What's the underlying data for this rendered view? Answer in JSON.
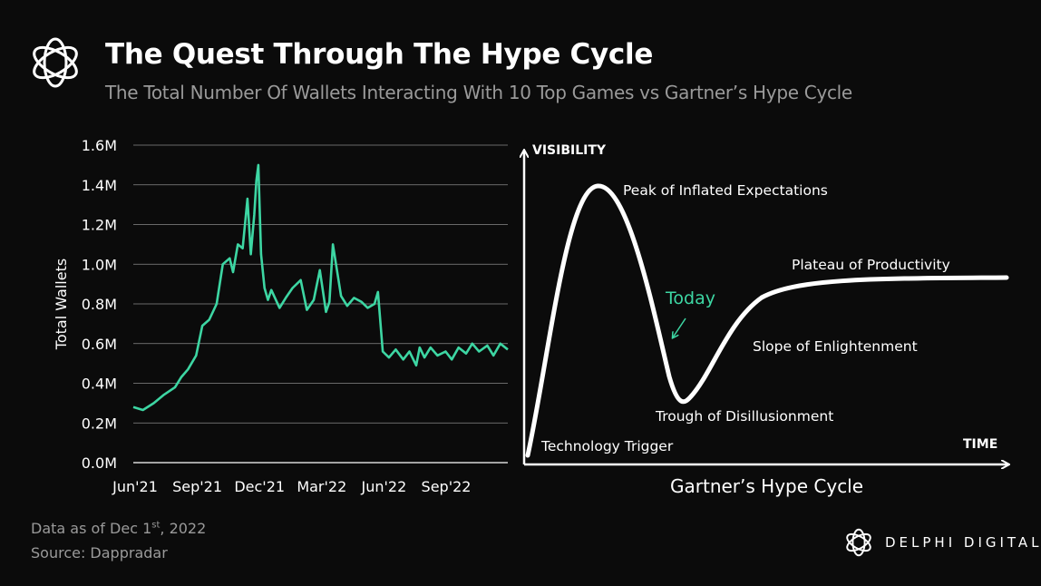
{
  "header": {
    "title": "The Quest Through The Hype Cycle",
    "subtitle": "The Total Number Of Wallets Interacting With 10 Top Games vs Gartner’s Hype Cycle"
  },
  "colors": {
    "accent": "#3dd6a3",
    "background": "#0b0b0b",
    "muted": "#9a9a9a"
  },
  "chart_data": [
    {
      "type": "line",
      "xlabel": "",
      "ylabel": "Total Wallets",
      "ylim": [
        0,
        1600000
      ],
      "yticks": [
        "0.0M",
        "0.2M",
        "0.4M",
        "0.6M",
        "0.8M",
        "1.0M",
        "1.2M",
        "1.4M",
        "1.6M"
      ],
      "xticks": [
        "Jun'21",
        "Sep'21",
        "Dec'21",
        "Mar'22",
        "Jun'22",
        "Sep'22"
      ],
      "grid": true,
      "series": [
        {
          "color": "#3dd6a3",
          "x": [
            "2021-06-01",
            "2021-06-15",
            "2021-07-01",
            "2021-07-15",
            "2021-08-01",
            "2021-08-10",
            "2021-08-20",
            "2021-09-01",
            "2021-09-10",
            "2021-09-20",
            "2021-10-01",
            "2021-10-10",
            "2021-10-20",
            "2021-10-25",
            "2021-11-01",
            "2021-11-08",
            "2021-11-15",
            "2021-11-20",
            "2021-11-25",
            "2021-11-28",
            "2021-12-01",
            "2021-12-05",
            "2021-12-10",
            "2021-12-15",
            "2021-12-20",
            "2022-01-01",
            "2022-01-10",
            "2022-01-20",
            "2022-02-01",
            "2022-02-10",
            "2022-02-20",
            "2022-03-01",
            "2022-03-10",
            "2022-03-15",
            "2022-03-20",
            "2022-04-01",
            "2022-04-10",
            "2022-04-20",
            "2022-05-01",
            "2022-05-10",
            "2022-05-20",
            "2022-05-25",
            "2022-06-01",
            "2022-06-10",
            "2022-06-20",
            "2022-07-01",
            "2022-07-10",
            "2022-07-20",
            "2022-07-25",
            "2022-08-01",
            "2022-08-10",
            "2022-08-20",
            "2022-09-01",
            "2022-09-10",
            "2022-09-20",
            "2022-10-01",
            "2022-10-10",
            "2022-10-20",
            "2022-11-01",
            "2022-11-10",
            "2022-11-20",
            "2022-12-01"
          ],
          "values": [
            280000,
            265000,
            300000,
            340000,
            380000,
            430000,
            470000,
            540000,
            690000,
            720000,
            800000,
            1000000,
            1030000,
            960000,
            1100000,
            1080000,
            1330000,
            1050000,
            1250000,
            1420000,
            1500000,
            1050000,
            880000,
            820000,
            870000,
            780000,
            830000,
            880000,
            920000,
            770000,
            820000,
            970000,
            760000,
            810000,
            1100000,
            840000,
            790000,
            830000,
            810000,
            780000,
            800000,
            860000,
            560000,
            530000,
            570000,
            520000,
            560000,
            490000,
            580000,
            530000,
            580000,
            540000,
            560000,
            520000,
            580000,
            550000,
            600000,
            560000,
            590000,
            540000,
            600000,
            570000
          ]
        }
      ]
    },
    {
      "type": "line",
      "title": "Gartner’s Hype Cycle",
      "xlabel": "TIME",
      "ylabel": "VISIBILITY",
      "annotations": [
        {
          "text": "Peak of Inflated Expectations"
        },
        {
          "text": "Plateau of Productivity"
        },
        {
          "text": "Today",
          "color": "#3dd6a3"
        },
        {
          "text": "Slope of Enlightenment"
        },
        {
          "text": "Trough of Disillusionment"
        },
        {
          "text": "Technology Trigger"
        }
      ]
    }
  ],
  "footer": {
    "data_as_of": "Data as of Dec 1",
    "data_as_of_sup": "st",
    "data_as_of_year": ", 2022",
    "source": "Source: Dappradar",
    "brand": "DELPHI DIGITAL"
  }
}
